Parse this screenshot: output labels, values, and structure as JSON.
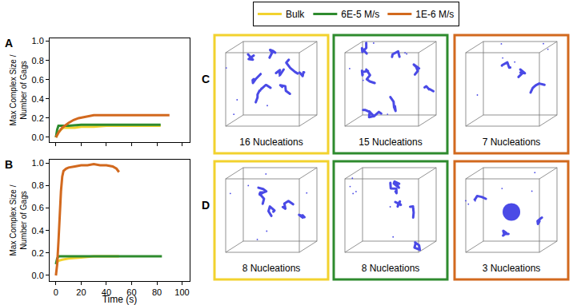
{
  "chart_data": [
    {
      "type": "line",
      "title": "A",
      "y_label": "Max Complex Size / Number of Gags",
      "xlim": [
        -5,
        106
      ],
      "xticks": [
        0,
        20,
        40,
        60,
        80,
        100
      ],
      "ylim": [
        -0.05,
        1.03
      ],
      "yticks": [
        {
          "value": 0,
          "label": "0.0"
        },
        {
          "value": 0.2,
          "label": "0.2"
        },
        {
          "value": 0.4,
          "label": "0.4"
        },
        {
          "value": 0.6,
          "label": "0.6"
        },
        {
          "value": 0.8,
          "label": "0.8"
        },
        {
          "value": 1,
          "label": "1.0"
        }
      ],
      "grid": false,
      "legend": "top",
      "tick_labels": "y",
      "series": [
        {
          "name": "Bulk",
          "color": "#f2d22e",
          "x": [
            0,
            2,
            4,
            6,
            10,
            15,
            20,
            30,
            40,
            50,
            60,
            70,
            83
          ],
          "values": [
            0,
            0.05,
            0.08,
            0.1,
            0.1,
            0.1,
            0.11,
            0.11,
            0.12,
            0.12,
            0.12,
            0.12,
            0.12
          ]
        },
        {
          "name": "6E-5 M/s",
          "color": "#2e8b2e",
          "x": [
            0,
            1,
            2,
            5,
            10,
            20,
            40,
            60,
            83
          ],
          "values": [
            0,
            0.08,
            0.12,
            0.12,
            0.12,
            0.13,
            0.13,
            0.13,
            0.13
          ]
        },
        {
          "name": "1E-6 M/s",
          "color": "#d2691e",
          "x": [
            0,
            2,
            5,
            8,
            10,
            14,
            18,
            22,
            26,
            30,
            40,
            50,
            60,
            70,
            80,
            90
          ],
          "values": [
            0,
            0.05,
            0.1,
            0.13,
            0.15,
            0.18,
            0.2,
            0.21,
            0.22,
            0.23,
            0.23,
            0.23,
            0.23,
            0.23,
            0.23,
            0.23
          ]
        }
      ]
    },
    {
      "type": "line",
      "title": "B",
      "x_label": "Time (s)",
      "y_label": "Max Complex Size / Number of Gags",
      "xlim": [
        -5,
        106
      ],
      "xticks": [
        0,
        20,
        40,
        60,
        80,
        100
      ],
      "ylim": [
        -0.05,
        1.03
      ],
      "yticks": [
        {
          "value": 0,
          "label": "0.0"
        },
        {
          "value": 0.2,
          "label": "0.2"
        },
        {
          "value": 0.4,
          "label": "0.4"
        },
        {
          "value": 0.6,
          "label": "0.6"
        },
        {
          "value": 0.8,
          "label": "0.8"
        },
        {
          "value": 1,
          "label": "1.0"
        }
      ],
      "grid": false,
      "series": [
        {
          "name": "Bulk",
          "color": "#f2d22e",
          "x": [
            0,
            2,
            5,
            10,
            20,
            30,
            40,
            50
          ],
          "values": [
            0.1,
            0.13,
            0.14,
            0.15,
            0.16,
            0.17,
            0.17,
            0.17
          ]
        },
        {
          "name": "6E-5 M/s",
          "color": "#2e8b2e",
          "x": [
            0,
            1,
            2,
            10,
            20,
            40,
            60,
            84
          ],
          "values": [
            0.1,
            0.15,
            0.17,
            0.17,
            0.17,
            0.17,
            0.17,
            0.17
          ]
        },
        {
          "name": "1E-6 M/s",
          "color": "#d2691e",
          "x": [
            0,
            1,
            2,
            3,
            4,
            5,
            6,
            8,
            10,
            15,
            20,
            25,
            30,
            35,
            40,
            45,
            48,
            50
          ],
          "values": [
            0,
            0.1,
            0.3,
            0.55,
            0.75,
            0.88,
            0.93,
            0.95,
            0.96,
            0.97,
            0.98,
            0.98,
            0.99,
            0.98,
            0.98,
            0.97,
            0.95,
            0.92
          ]
        }
      ]
    }
  ],
  "panels": [
    {
      "label": "C",
      "items": [
        {
          "caption": "16 Nucleations",
          "series": "Bulk"
        },
        {
          "caption": "15 Nucleations",
          "series": "6E-5 M/s"
        },
        {
          "caption": "7 Nucleations",
          "series": "1E-6 M/s"
        }
      ]
    },
    {
      "label": "D",
      "items": [
        {
          "caption": "8 Nucleations",
          "series": "Bulk"
        },
        {
          "caption": "8 Nucleations",
          "series": "6E-5 M/s"
        },
        {
          "caption": "3 Nucleations",
          "series": "1E-6 M/s"
        }
      ]
    }
  ]
}
